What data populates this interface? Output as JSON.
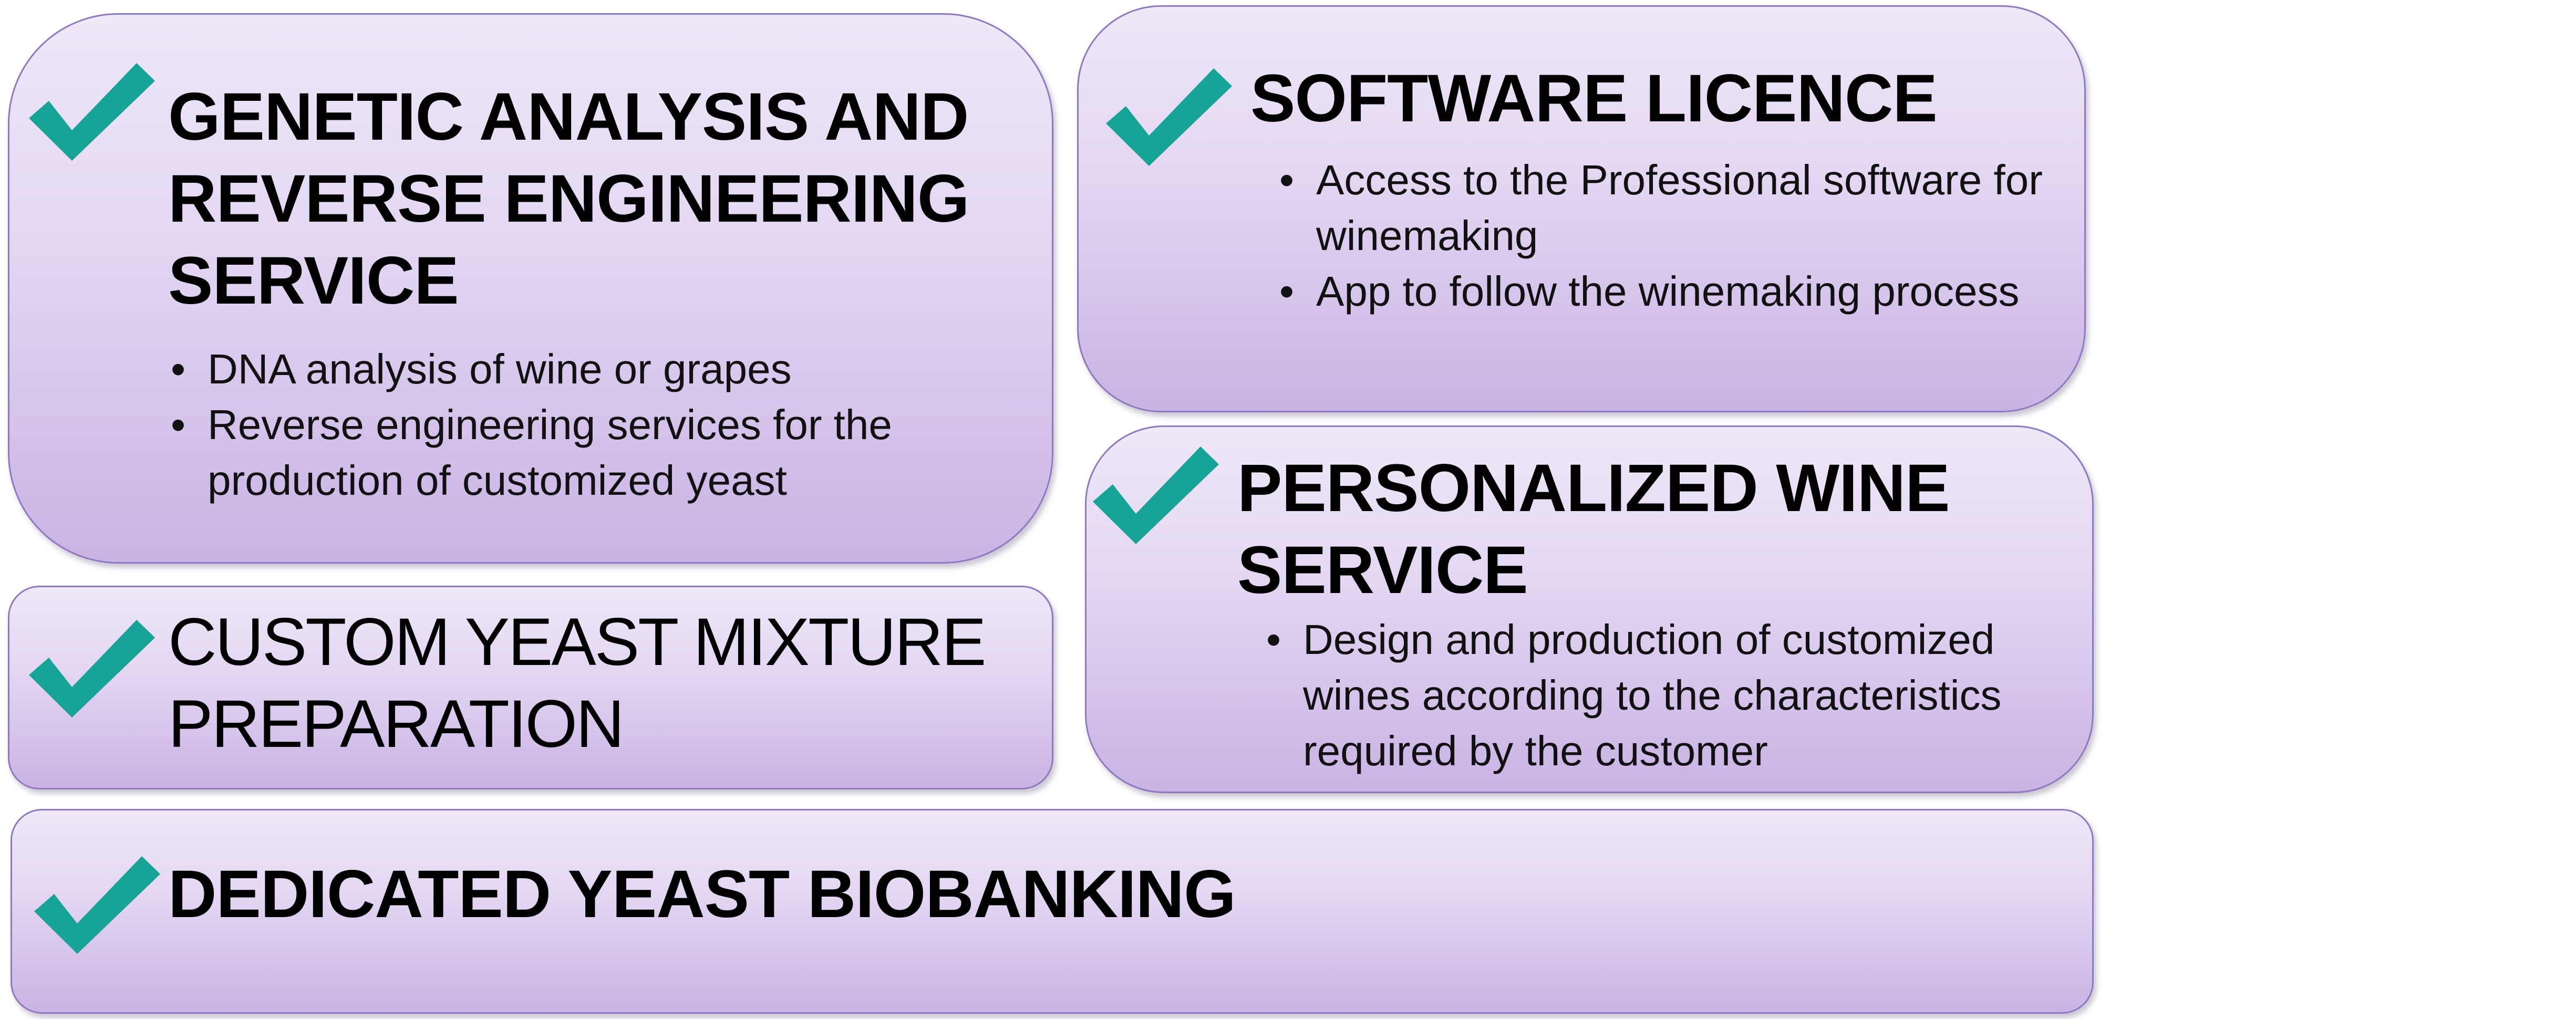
{
  "colors": {
    "check": "#17a398",
    "card_border": "#8f78bf",
    "card_top": "#efe8f8",
    "card_bottom": "#c9b3e4",
    "text": "#000000"
  },
  "icons": {
    "check": "checkmark-icon"
  },
  "cards": {
    "genetic": {
      "title": "GENETIC ANALYSIS AND REVERSE ENGINEERING SERVICE",
      "bullets": [
        "DNA analysis of wine or grapes",
        "Reverse engineering services for the production of customized yeast"
      ]
    },
    "software": {
      "title": "SOFTWARE LICENCE",
      "bullets": [
        "Access to the Professional software for winemaking",
        "App to follow the winemaking process"
      ]
    },
    "custom": {
      "title": "CUSTOM YEAST MIXTURE PREPARATION"
    },
    "wine": {
      "title": "PERSONALIZED WINE SERVICE",
      "bullets": [
        "Design and production of customized wines according to the characteristics required by the customer"
      ]
    },
    "biobank": {
      "title": "DEDICATED YEAST BIOBANKING"
    }
  }
}
